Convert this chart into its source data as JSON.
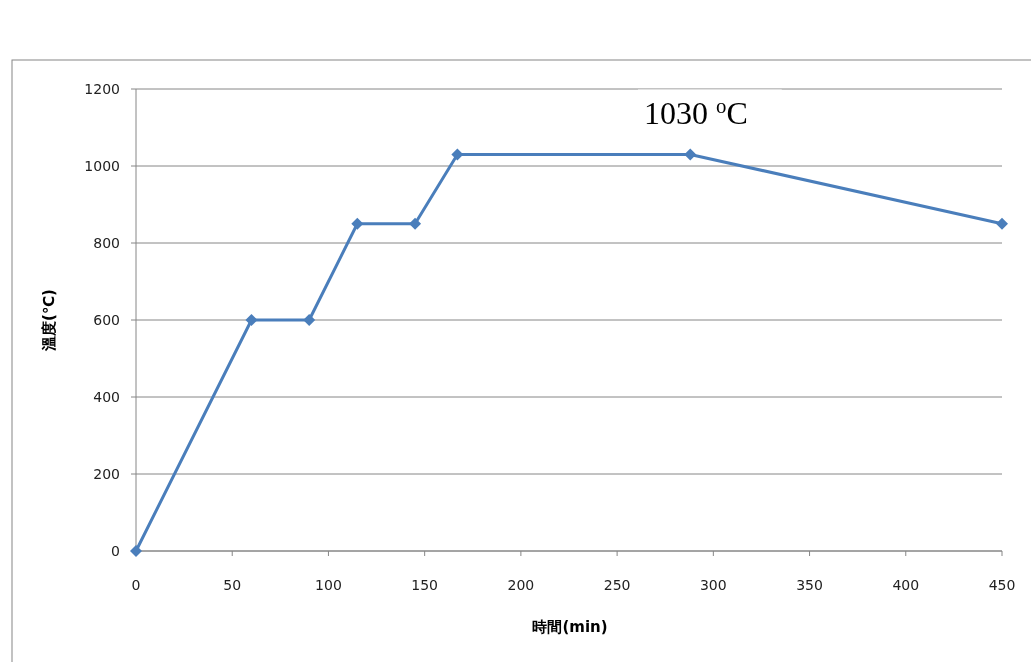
{
  "chart_data": {
    "type": "line",
    "xlabel": "時間(min)",
    "ylabel": "溫度(℃)",
    "x": [
      0,
      60,
      90,
      115,
      145,
      167,
      288,
      450
    ],
    "series": [
      {
        "color": "#4a7ebb",
        "values": [
          0,
          600,
          600,
          850,
          850,
          1030,
          1030,
          850
        ]
      }
    ],
    "xlim": [
      0,
      450
    ],
    "ylim": [
      0,
      1200
    ],
    "xticks": [
      0,
      50,
      100,
      150,
      200,
      250,
      300,
      350,
      400,
      450
    ],
    "yticks": [
      0,
      200,
      400,
      600,
      800,
      1000,
      1200
    ],
    "grid": "y",
    "marker": "diamond",
    "line_style": "solid",
    "annotations": [
      "1030 $^{o}$C"
    ]
  }
}
